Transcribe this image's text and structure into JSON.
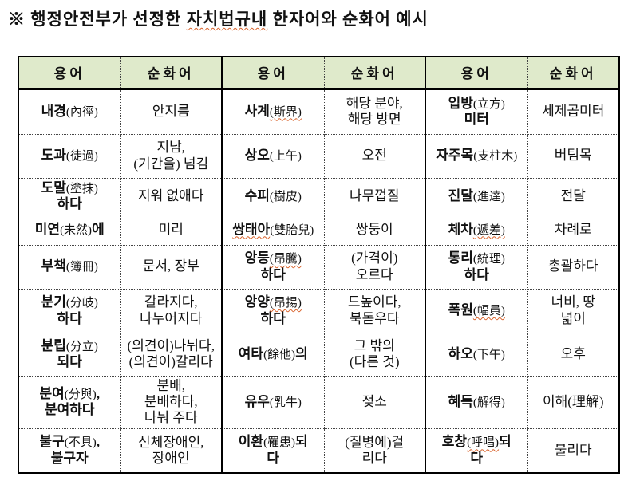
{
  "title": {
    "prefix": "※ 행정안전부가 선정한 ",
    "marked": "자치법규내",
    "suffix": " 한자어와 순화어 예시"
  },
  "colors": {
    "header_bg": "#dfeacb",
    "wavy_underline": "#d9622b",
    "border": "#000000",
    "text": "#111111"
  },
  "table": {
    "header_labels": [
      "용어",
      "순화어",
      "용어",
      "순화어",
      "용어",
      "순화어"
    ],
    "rows": [
      [
        {
          "term": [
            {
              "t": "내경",
              "b": true
            },
            {
              "t": "(內徑)",
              "b": false
            }
          ],
          "purified": "안지름"
        },
        {
          "term": [
            {
              "t": "사계",
              "b": true
            },
            {
              "t": "(斯界)",
              "b": false,
              "u": true
            }
          ],
          "purified": "해당 분야,\n해당 방면"
        },
        {
          "term": [
            {
              "t": "입방",
              "b": true
            },
            {
              "t": "(立方)",
              "b": false
            },
            {
              "t": "\n미터",
              "b": true
            }
          ],
          "purified": "세제곱미터"
        }
      ],
      [
        {
          "term": [
            {
              "t": "도과",
              "b": true
            },
            {
              "t": "(徒過)",
              "b": false
            }
          ],
          "purified": "지남,\n(기간을) 넘김"
        },
        {
          "term": [
            {
              "t": "상오",
              "b": true
            },
            {
              "t": "(上午)",
              "b": false
            }
          ],
          "purified": "오전"
        },
        {
          "term": [
            {
              "t": "자주목",
              "b": true
            },
            {
              "t": "(支柱木)",
              "b": false
            }
          ],
          "purified": "버팀목"
        }
      ],
      [
        {
          "term": [
            {
              "t": "도말",
              "b": true
            },
            {
              "t": "(塗抹)",
              "b": false
            },
            {
              "t": "\n하다",
              "b": true
            }
          ],
          "purified": "지워 없애다"
        },
        {
          "term": [
            {
              "t": "수피",
              "b": true
            },
            {
              "t": "(樹皮)",
              "b": false
            }
          ],
          "purified": "나무껍질"
        },
        {
          "term": [
            {
              "t": "진달",
              "b": true
            },
            {
              "t": "(進達)",
              "b": false
            }
          ],
          "purified": "전달"
        }
      ],
      [
        {
          "term": [
            {
              "t": "미연",
              "b": true
            },
            {
              "t": "(未然)",
              "b": false
            },
            {
              "t": "에",
              "b": true
            }
          ],
          "purified": "미리"
        },
        {
          "term": [
            {
              "t": "쌍태아",
              "b": true,
              "u": true
            },
            {
              "t": "(雙胎兒)",
              "b": false
            }
          ],
          "purified": "쌍둥이"
        },
        {
          "term": [
            {
              "t": "체차",
              "b": true
            },
            {
              "t": "(遞差)",
              "b": false,
              "u": true
            }
          ],
          "purified": "차례로"
        }
      ],
      [
        {
          "term": [
            {
              "t": "부책",
              "b": true
            },
            {
              "t": "(簿冊)",
              "b": false
            }
          ],
          "purified": "문서, 장부"
        },
        {
          "term": [
            {
              "t": "앙등",
              "b": true
            },
            {
              "t": "(昂騰)",
              "b": false,
              "u": true
            },
            {
              "t": "\n하다",
              "b": true
            }
          ],
          "purified": "(가격이)\n오르다"
        },
        {
          "term": [
            {
              "t": "통리",
              "b": true
            },
            {
              "t": "(統理)",
              "b": false
            },
            {
              "t": "\n하다",
              "b": true
            }
          ],
          "purified": "총괄하다"
        }
      ],
      [
        {
          "term": [
            {
              "t": "분기",
              "b": true
            },
            {
              "t": "(分岐)",
              "b": false
            },
            {
              "t": "\n하다",
              "b": true
            }
          ],
          "purified": "갈라지다,\n나누어지다"
        },
        {
          "term": [
            {
              "t": "앙양",
              "b": true
            },
            {
              "t": "(昂揚)",
              "b": false,
              "u": true
            },
            {
              "t": "\n하다",
              "b": true
            }
          ],
          "purified": "드높이다,\n북돋우다"
        },
        {
          "term": [
            {
              "t": "폭원",
              "b": true
            },
            {
              "t": "(幅員)",
              "b": false,
              "u": true
            }
          ],
          "purified": "너비, 땅\n넓이"
        }
      ],
      [
        {
          "term": [
            {
              "t": "분립",
              "b": true
            },
            {
              "t": "(分立)",
              "b": false
            },
            {
              "t": "\n되다",
              "b": true
            }
          ],
          "purified": "(의견이)나뉘다,\n(의견이)갈리다"
        },
        {
          "term": [
            {
              "t": "여타",
              "b": true
            },
            {
              "t": "(餘他)",
              "b": false
            },
            {
              "t": "의",
              "b": true
            }
          ],
          "purified": "그 밖의\n(다른 것)"
        },
        {
          "term": [
            {
              "t": "하오",
              "b": true
            },
            {
              "t": "(下午)",
              "b": false
            }
          ],
          "purified": "오후"
        }
      ],
      [
        {
          "term": [
            {
              "t": "분여",
              "b": true
            },
            {
              "t": "(分與)",
              "b": false
            },
            {
              "t": ",\n분여하다",
              "b": true
            }
          ],
          "purified": "분배,\n분배하다,\n나눠 주다"
        },
        {
          "term": [
            {
              "t": "유우",
              "b": true
            },
            {
              "t": "(乳牛)",
              "b": false
            }
          ],
          "purified": "젖소"
        },
        {
          "term": [
            {
              "t": "혜득",
              "b": true
            },
            {
              "t": "(解得)",
              "b": false
            }
          ],
          "purified": "이해(理解)"
        }
      ],
      [
        {
          "term": [
            {
              "t": "불구",
              "b": true
            },
            {
              "t": "(不具)",
              "b": false
            },
            {
              "t": ",\n불구자",
              "b": true
            }
          ],
          "purified": "신체장애인,\n장애인"
        },
        {
          "term": [
            {
              "t": "이환",
              "b": true
            },
            {
              "t": "(罹患)",
              "b": false
            },
            {
              "t": "되\n다",
              "b": true
            }
          ],
          "purified": "(질병에)걸\n리다"
        },
        {
          "term": [
            {
              "t": "호창",
              "b": true
            },
            {
              "t": "(呼唱)",
              "b": false,
              "u": true
            },
            {
              "t": "되\n다",
              "b": true
            }
          ],
          "purified": "불리다"
        }
      ]
    ]
  }
}
